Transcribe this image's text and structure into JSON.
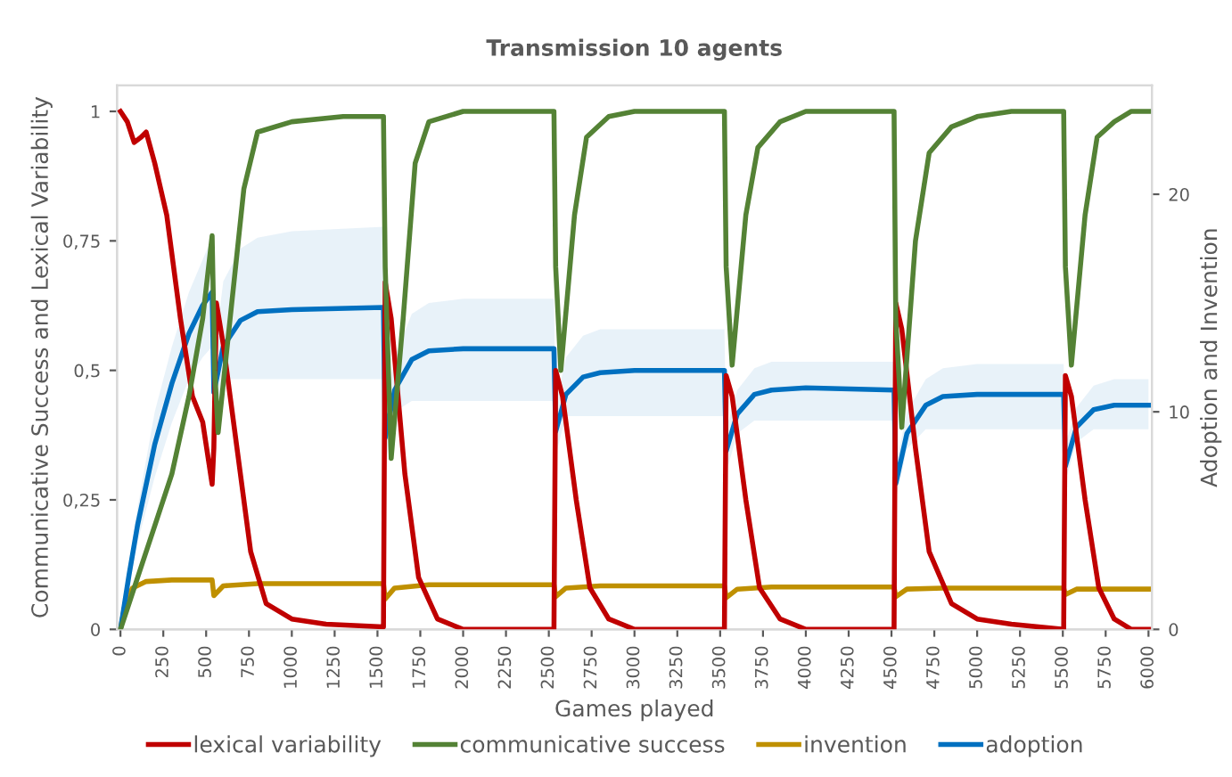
{
  "chart_data": {
    "type": "line",
    "title": "Transmission 10 agents",
    "xlabel": "Games played",
    "ylabel": "Communicative Success and Lexical Variability",
    "y2label": "Adoption and Invention",
    "xlim": [
      -20,
      6020
    ],
    "xticks": [
      0,
      250,
      500,
      750,
      1000,
      1250,
      1500,
      1750,
      2000,
      2250,
      2500,
      2750,
      3000,
      3250,
      3500,
      3750,
      4000,
      4250,
      4500,
      4750,
      5000,
      5250,
      5500,
      5750,
      6000
    ],
    "ylim": [
      0,
      1.05
    ],
    "yticks": [
      {
        "value": 0,
        "label": "0"
      },
      {
        "value": 0.25,
        "label": "0,25"
      },
      {
        "value": 0.5,
        "label": "0,5"
      },
      {
        "value": 0.75,
        "label": "0,75"
      },
      {
        "value": 1,
        "label": "1"
      }
    ],
    "y2lim": [
      0,
      25
    ],
    "y2ticks": [
      0,
      10,
      20
    ],
    "grid": false,
    "legend": "bottom",
    "line_style": "solid",
    "marker": "none",
    "series": [
      {
        "name": "lexical variability",
        "color": "#c00000",
        "x": [
          0,
          40,
          80,
          120,
          150,
          200,
          270,
          350,
          420,
          480,
          535,
          545,
          560,
          600,
          680,
          760,
          850,
          1000,
          1200,
          1535,
          1545,
          1580,
          1660,
          1740,
          1850,
          2000,
          2530,
          2540,
          2580,
          2660,
          2740,
          2850,
          3000,
          3525,
          3535,
          3570,
          3650,
          3730,
          3850,
          4000,
          4515,
          4525,
          4560,
          4640,
          4720,
          4850,
          5000,
          5200,
          5505,
          5515,
          5550,
          5630,
          5710,
          5800,
          5900,
          6000
        ],
        "values": [
          1,
          0.98,
          0.94,
          0.95,
          0.96,
          0.9,
          0.8,
          0.6,
          0.45,
          0.4,
          0.28,
          0.35,
          0.63,
          0.55,
          0.35,
          0.15,
          0.05,
          0.02,
          0.01,
          0.005,
          0.67,
          0.6,
          0.3,
          0.1,
          0.02,
          0,
          0,
          0.5,
          0.45,
          0.25,
          0.08,
          0.02,
          0,
          0,
          0.49,
          0.45,
          0.25,
          0.08,
          0.02,
          0,
          0,
          0.63,
          0.58,
          0.35,
          0.15,
          0.05,
          0.02,
          0.01,
          0,
          0.49,
          0.45,
          0.25,
          0.08,
          0.02,
          0,
          0
        ]
      },
      {
        "name": "communicative success",
        "color": "#548235",
        "x": [
          0,
          50,
          100,
          200,
          300,
          400,
          480,
          535,
          550,
          570,
          640,
          720,
          800,
          1000,
          1300,
          1535,
          1545,
          1580,
          1650,
          1720,
          1800,
          2000,
          2530,
          2540,
          2570,
          2650,
          2720,
          2850,
          3000,
          3525,
          3535,
          3570,
          3650,
          3720,
          3850,
          4000,
          4515,
          4525,
          4560,
          4640,
          4720,
          4850,
          5000,
          5200,
          5505,
          5515,
          5550,
          5630,
          5700,
          5800,
          5900,
          6000
        ],
        "values": [
          0,
          0.05,
          0.1,
          0.2,
          0.3,
          0.45,
          0.6,
          0.76,
          0.5,
          0.38,
          0.6,
          0.85,
          0.96,
          0.98,
          0.99,
          0.99,
          0.7,
          0.33,
          0.6,
          0.9,
          0.98,
          1,
          1,
          0.7,
          0.5,
          0.8,
          0.95,
          0.99,
          1,
          1,
          0.7,
          0.51,
          0.8,
          0.93,
          0.98,
          1,
          1,
          0.6,
          0.39,
          0.75,
          0.92,
          0.97,
          0.99,
          1,
          1,
          0.7,
          0.51,
          0.8,
          0.95,
          0.98,
          1,
          1
        ]
      },
      {
        "name": "invention",
        "color": "#bf9000",
        "axis": "y2",
        "x": [
          0,
          30,
          70,
          150,
          300,
          535,
          545,
          600,
          800,
          1535,
          1545,
          1600,
          1800,
          2530,
          2540,
          2600,
          2800,
          3525,
          3535,
          3600,
          3800,
          4515,
          4525,
          4590,
          4800,
          5505,
          5515,
          5580,
          5800,
          6000
        ],
        "values": [
          0,
          1.3,
          1.9,
          2.2,
          2.27,
          2.27,
          1.55,
          2.0,
          2.1,
          2.1,
          1.4,
          1.9,
          2.05,
          2.05,
          1.5,
          1.9,
          2.0,
          2.0,
          1.45,
          1.85,
          1.95,
          1.95,
          1.5,
          1.85,
          1.9,
          1.9,
          1.6,
          1.85,
          1.85,
          1.85
        ]
      },
      {
        "name": "adoption",
        "color": "#0070c0",
        "axis": "y2",
        "x": [
          0,
          50,
          100,
          200,
          300,
          400,
          480,
          535,
          545,
          600,
          700,
          800,
          1000,
          1535,
          1545,
          1600,
          1700,
          1800,
          2000,
          2530,
          2540,
          2600,
          2700,
          2800,
          3000,
          3525,
          3535,
          3600,
          3700,
          3800,
          4000,
          4515,
          4525,
          4590,
          4700,
          4800,
          5000,
          5505,
          5515,
          5580,
          5680,
          5800,
          6000
        ],
        "values": [
          0,
          2.5,
          4.8,
          8.5,
          11.3,
          13.6,
          14.9,
          15.5,
          10.9,
          13.0,
          14.2,
          14.6,
          14.7,
          14.8,
          8.8,
          11.0,
          12.4,
          12.8,
          12.9,
          12.9,
          9.1,
          10.8,
          11.6,
          11.8,
          11.9,
          11.9,
          8.2,
          9.9,
          10.8,
          11.0,
          11.1,
          11.0,
          6.7,
          9.0,
          10.3,
          10.7,
          10.8,
          10.8,
          7.5,
          9.3,
          10.1,
          10.3,
          10.3
        ],
        "lower": [
          0,
          2,
          4,
          7,
          9.5,
          11.5,
          12.5,
          13,
          9.5,
          11.5,
          11.5,
          11.5,
          11.5,
          11.5,
          7.5,
          10,
          10.5,
          10.5,
          10.5,
          10.5,
          8,
          9.8,
          9.8,
          9.8,
          9.8,
          9.8,
          7.2,
          9,
          9.6,
          9.6,
          9.6,
          9.6,
          6,
          8.3,
          9.2,
          9.2,
          9.2,
          9.2,
          6.8,
          8.6,
          9.2,
          9.2,
          9.2
        ],
        "upper": [
          0,
          3,
          5.6,
          10,
          13,
          15.5,
          17,
          18,
          12.5,
          16,
          17.5,
          18,
          18.3,
          18.5,
          10.3,
          12.5,
          14.5,
          15,
          15.2,
          15.2,
          10.3,
          12.5,
          13.5,
          13.8,
          13.8,
          13.8,
          9.2,
          11,
          12,
          12.3,
          12.3,
          12.3,
          7.5,
          10,
          11.5,
          12,
          12.2,
          12.2,
          8.5,
          10.2,
          11.2,
          11.5,
          11.5
        ]
      }
    ]
  }
}
